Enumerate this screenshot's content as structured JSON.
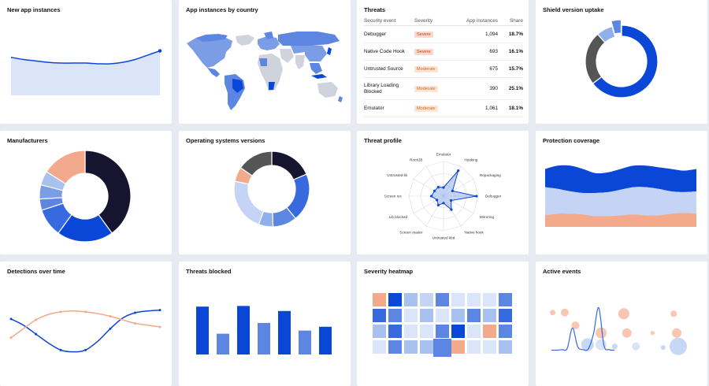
{
  "colors": {
    "blue": "#0b47d6",
    "mid_blue": "#5d86e3",
    "light_blue": "#a9c1ef",
    "pale_blue": "#dbe5fa",
    "navy": "#17142f",
    "salmon": "#f2a98c",
    "gray": "#555555",
    "page_bg": "#e8eaf2"
  },
  "cards": {
    "new_app_instances": "New app instances",
    "app_instances_by_country": "App instances by country",
    "threats": "Threats",
    "shield_version_uptake": "Shield version uptake",
    "manufacturers": "Manufacturers",
    "os_versions": "Operating systems versions",
    "threat_profile": "Threat profile",
    "protection_coverage": "Protection coverage",
    "detections_over_time": "Detections over time",
    "threats_blocked": "Threats blocked",
    "severity_heatmap": "Severity heatmap",
    "active_events": "Active events"
  },
  "threats_table": {
    "headers": [
      "Security event",
      "Severity",
      "App instances",
      "Share"
    ],
    "rows": [
      {
        "event": "Debugger",
        "severity": "Severe",
        "instances": "1,094",
        "share": "18.7%"
      },
      {
        "event": "Native Code Hook",
        "severity": "Severe",
        "instances": "693",
        "share": "16.1%"
      },
      {
        "event": "Untrusted Source",
        "severity": "Moderate",
        "instances": "675",
        "share": "15.7%"
      },
      {
        "event": "Library Loading Blocked",
        "severity": "Moderate",
        "instances": "390",
        "share": "25.1%"
      },
      {
        "event": "Emulator",
        "severity": "Moderate",
        "instances": "1,061",
        "share": "18.1%"
      }
    ]
  },
  "threat_profile_axes": [
    "Emulator",
    "Hooking",
    "Repackaging",
    "Debugger",
    "Mirroring",
    "Native hook",
    "Untrusted kbd",
    "Screen reader",
    "Lib blocked",
    "Screen rec",
    "Untrusted lib",
    "Root/JB"
  ],
  "chart_data": [
    {
      "type": "area",
      "title": "New app instances",
      "values": [
        53,
        50,
        48,
        46,
        45,
        45,
        45,
        44,
        44,
        46,
        50,
        56,
        62
      ]
    },
    {
      "type": "pie",
      "title": "Shield version uptake",
      "slices": [
        {
          "value": 62,
          "color": "#0b47d6"
        },
        {
          "value": 23,
          "color": "#555555"
        },
        {
          "value": 7,
          "color": "#8fb0ec"
        },
        {
          "value": 4,
          "color": "#5d86e3",
          "exploded": true
        }
      ]
    },
    {
      "type": "pie",
      "title": "Manufacturers",
      "slices": [
        {
          "value": 40,
          "color": "#17142f"
        },
        {
          "value": 20,
          "color": "#0b47d6"
        },
        {
          "value": 10,
          "color": "#3769df"
        },
        {
          "value": 4,
          "color": "#5d86e3"
        },
        {
          "value": 5,
          "color": "#7b9de6"
        },
        {
          "value": 5,
          "color": "#a9c1ef"
        },
        {
          "value": 16,
          "color": "#f2a98c"
        }
      ]
    },
    {
      "type": "pie",
      "title": "Operating systems versions",
      "slices": [
        {
          "value": 18,
          "color": "#17142f"
        },
        {
          "value": 20,
          "color": "#3769df"
        },
        {
          "value": 10,
          "color": "#5d86e3"
        },
        {
          "value": 6,
          "color": "#8fb0ec"
        },
        {
          "value": 22,
          "color": "#c5d4f5"
        },
        {
          "value": 6,
          "color": "#f2a98c"
        },
        {
          "value": 15,
          "color": "#555555"
        }
      ]
    },
    {
      "type": "radar",
      "title": "Threat profile",
      "values": [
        0.25,
        0.85,
        0.3,
        0.95,
        0.25,
        0.45,
        0.2,
        0.3,
        0.22,
        0.35,
        0.3,
        0.3
      ]
    },
    {
      "type": "area",
      "title": "Protection coverage",
      "series": [
        {
          "color": "#0b47d6",
          "top": [
            70,
            74,
            74,
            70,
            65,
            66,
            70,
            74,
            74,
            72,
            70,
            68,
            70
          ],
          "bottom": [
            48,
            46,
            43,
            41,
            41,
            42,
            45,
            48,
            48,
            46,
            43,
            42,
            43
          ]
        },
        {
          "color": "#c5d4f5",
          "top": [
            48,
            46,
            43,
            41,
            41,
            42,
            45,
            48,
            48,
            46,
            43,
            42,
            43
          ],
          "bottom": [
            14,
            16,
            16,
            15,
            13,
            13,
            14,
            15,
            14,
            14,
            16,
            17,
            16
          ]
        },
        {
          "color": "#f2a98c",
          "top": [
            14,
            16,
            16,
            15,
            13,
            13,
            14,
            15,
            14,
            14,
            16,
            17,
            16
          ],
          "bottom": [
            0,
            0,
            0,
            0,
            0,
            0,
            0,
            0,
            0,
            0,
            0,
            0,
            0
          ]
        }
      ]
    },
    {
      "type": "line",
      "title": "Detections over time",
      "x": [
        0,
        1,
        2,
        3,
        4,
        5,
        6,
        7,
        8,
        9,
        10,
        11,
        12
      ],
      "series": [
        {
          "color": "#0b47d6",
          "values": [
            55,
            48,
            38,
            28,
            20,
            18,
            20,
            30,
            44,
            56,
            62,
            64,
            65
          ]
        },
        {
          "color": "#f2a98c",
          "values": [
            34,
            44,
            54,
            60,
            63,
            64,
            63,
            61,
            58,
            54,
            50,
            48,
            46
          ]
        }
      ]
    },
    {
      "type": "bar",
      "title": "Threats blocked",
      "values": [
        76,
        33,
        77,
        50,
        69,
        38,
        44
      ],
      "colors": [
        "#0b47d6",
        "#5d86e3",
        "#0b47d6",
        "#5d86e3",
        "#0b47d6",
        "#5d86e3",
        "#0b47d6"
      ],
      "ylim": [
        0,
        100
      ]
    },
    {
      "type": "heatmap",
      "title": "Severity heatmap",
      "cells": [
        [
          "#f2a98c",
          "#0b47d6",
          "#a9c1ef",
          "#c5d4f5",
          "#5d86e3",
          "#dbe5fa",
          "#dbe5fa",
          "#dbe5fa",
          "#5d86e3"
        ],
        [
          "#3769df",
          "#5d86e3",
          "#dbe5fa",
          "#a9c1ef",
          "#dbe5fa",
          "#a9c1ef",
          "#5d86e3",
          "#a9c1ef",
          "#3769df"
        ],
        [
          "#a9c1ef",
          "#3769df",
          "#dbe5fa",
          "#dbe5fa",
          "#5d86e3",
          "#0b47d6",
          "#dbe5fa",
          "#f2a98c",
          "#5d86e3"
        ],
        [
          "#dbe5fa",
          "#5d86e3",
          "#a9c1ef",
          "#a9c1ef",
          "#5d86e3",
          "#f2a98c",
          "#dbe5fa",
          "#dbe5fa",
          "#a9c1ef"
        ]
      ]
    },
    {
      "type": "scatter",
      "title": "Active events",
      "line": [
        2,
        2,
        3,
        5,
        40,
        8,
        3,
        4,
        30,
        75,
        10,
        3,
        2
      ],
      "bubbles": [
        {
          "x": 0.05,
          "y": 0.8,
          "r": 3.5,
          "color": "#f2a98c"
        },
        {
          "x": 0.13,
          "y": 0.8,
          "r": 5,
          "color": "#f2a98c"
        },
        {
          "x": 0.2,
          "y": 0.58,
          "r": 5,
          "color": "#f2a98c"
        },
        {
          "x": 0.28,
          "y": 0.25,
          "r": 8,
          "color": "#a9c1ef"
        },
        {
          "x": 0.37,
          "y": 0.45,
          "r": 7,
          "color": "#f2a98c"
        },
        {
          "x": 0.37,
          "y": 0.25,
          "r": 7,
          "color": "#c5d4f5"
        },
        {
          "x": 0.46,
          "y": 0.22,
          "r": 3.5,
          "color": "#a9c1ef"
        },
        {
          "x": 0.52,
          "y": 0.78,
          "r": 7,
          "color": "#f2a98c"
        },
        {
          "x": 0.54,
          "y": 0.45,
          "r": 6,
          "color": "#f2a98c"
        },
        {
          "x": 0.6,
          "y": 0.22,
          "r": 5,
          "color": "#c5d4f5"
        },
        {
          "x": 0.71,
          "y": 0.45,
          "r": 2.5,
          "color": "#f2a98c"
        },
        {
          "x": 0.78,
          "y": 0.2,
          "r": 3,
          "color": "#a9c1ef"
        },
        {
          "x": 0.85,
          "y": 0.78,
          "r": 4,
          "color": "#f2a98c"
        },
        {
          "x": 0.87,
          "y": 0.45,
          "r": 6,
          "color": "#f2a98c"
        },
        {
          "x": 0.88,
          "y": 0.22,
          "r": 11,
          "color": "#a9c1ef"
        }
      ]
    }
  ]
}
